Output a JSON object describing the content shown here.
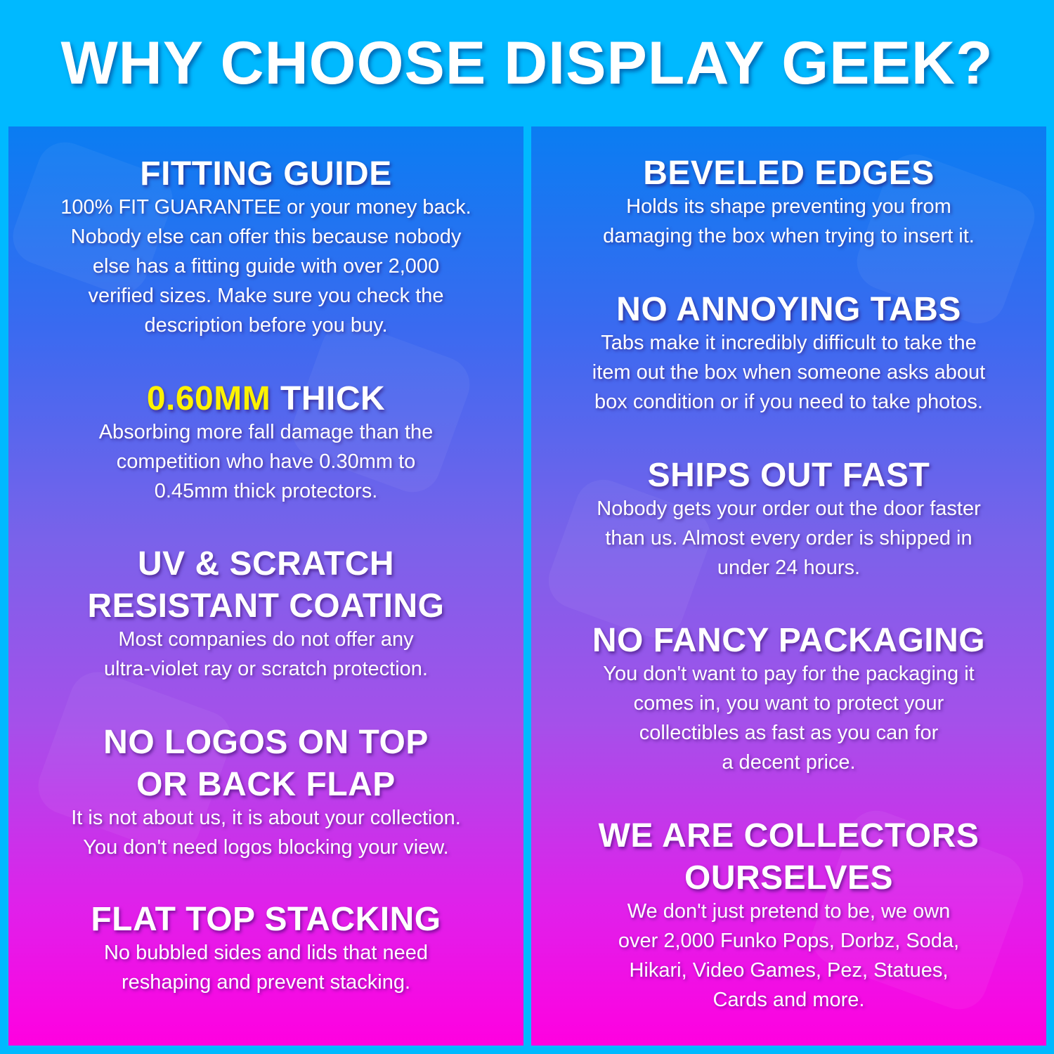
{
  "title": "WHY CHOOSE DISPLAY GEEK?",
  "colors": {
    "background": "#00b9ff",
    "gradient_top": "#0a7df2",
    "gradient_bottom": "#ff00e0",
    "highlight": "#fff200"
  },
  "left": [
    {
      "heading": "FITTING GUIDE",
      "body": "100% FIT GUARANTEE or your money back.\nNobody else can offer this because nobody\nelse has a fitting guide with over 2,000\nverified sizes. Make sure you check the\ndescription before you buy."
    },
    {
      "heading_highlight": "0.60MM",
      "heading": " THICK",
      "body": "Absorbing more fall damage than the\ncompetition who have 0.30mm to\n0.45mm thick protectors."
    },
    {
      "heading": "UV & SCRATCH\nRESISTANT COATING",
      "body": "Most companies do not offer any\nultra-violet ray or scratch protection."
    },
    {
      "heading": "NO LOGOS ON TOP\nOR BACK FLAP",
      "body": "It is not about us, it is about your collection.\nYou don't need logos blocking your view."
    },
    {
      "heading": "FLAT TOP STACKING",
      "body": "No bubbled sides and lids that need\nreshaping and prevent stacking."
    }
  ],
  "right": [
    {
      "heading": "BEVELED EDGES",
      "body": "Holds its shape preventing you from\ndamaging the box when trying to insert it."
    },
    {
      "heading": "NO ANNOYING TABS",
      "body": "Tabs make it incredibly difficult to take the\nitem out the box when someone asks about\nbox condition or if you need to take photos."
    },
    {
      "heading": "SHIPS OUT FAST",
      "body": "Nobody gets your order out the door faster\nthan us. Almost every order is shipped in\nunder 24 hours."
    },
    {
      "heading": "NO FANCY PACKAGING",
      "body": "You don't want to pay for the packaging it\ncomes in, you want to protect your\ncollectibles as fast as you can for\na decent price."
    },
    {
      "heading": "WE ARE COLLECTORS\nOURSELVES",
      "body": "We don't just pretend to be, we own\nover 2,000 Funko Pops, Dorbz, Soda,\nHikari, Video Games, Pez, Statues,\nCards and more."
    }
  ]
}
